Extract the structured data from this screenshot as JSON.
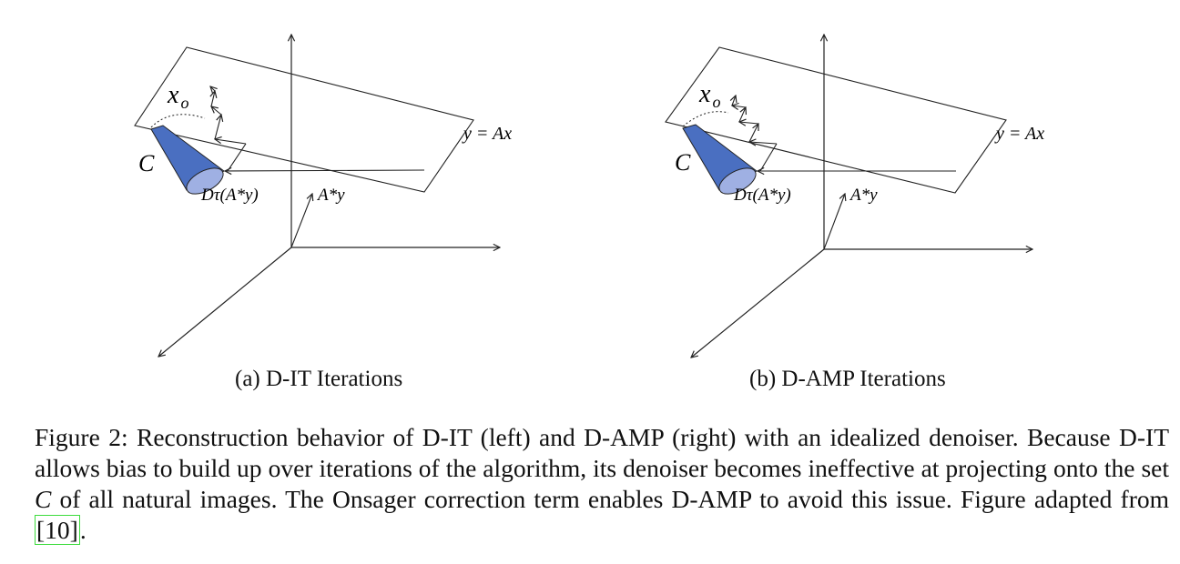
{
  "figure": {
    "panels": [
      {
        "id": "a",
        "label_x0": "x",
        "label_x0_sub": "o",
        "label_eq": "y = Ax",
        "label_c": "C",
        "label_denoise": "Dτ(A*y)",
        "label_backproj": "A*y",
        "subcaption": "(a) D-IT Iterations"
      },
      {
        "id": "b",
        "label_x0": "x",
        "label_x0_sub": "o",
        "label_eq": "y = Ax",
        "label_c": "C",
        "label_denoise": "Dτ(A*y)",
        "label_backproj": "A*y",
        "subcaption": "(b) D-AMP Iterations"
      }
    ],
    "cylinder_color": "#4a6fc1"
  },
  "caption": {
    "lead": "Figure 2:  Reconstruction behavior of D-IT (left) and D-AMP (right) with an idealized denoiser. Because D-IT allows bias to build up over iterations of the algorithm, its denoiser becomes ineffective at projecting onto the set ",
    "set_symbol": "C",
    "middle": " of all natural images. The Onsager correction term enables D-AMP to avoid this issue. Figure adapted from ",
    "ref": "[10]",
    "end": "."
  }
}
